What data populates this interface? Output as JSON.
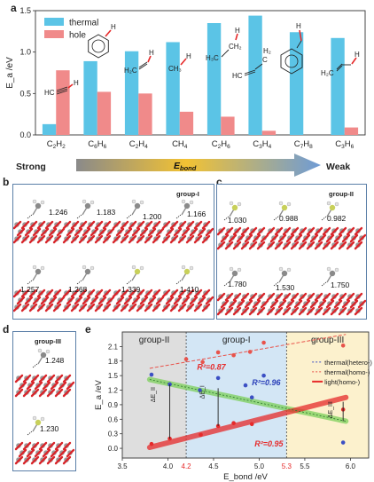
{
  "panels": {
    "a": "a",
    "b": "b",
    "c": "c",
    "d": "d",
    "e": "e"
  },
  "chart_data": [
    {
      "type": "bar",
      "panel": "a",
      "ylabel": "E_a /eV",
      "ylim": [
        0,
        1.5
      ],
      "yticks": [
        "0.0",
        "0.5",
        "1.0",
        "1.5"
      ],
      "categories": [
        "C2H2",
        "C6H6",
        "C2H4",
        "CH4",
        "C2H6",
        "C3H4",
        "C7H8",
        "C3H6"
      ],
      "category_labels": [
        {
          "main": "C",
          "sub1": "2",
          "mid": "H",
          "sub2": "2"
        },
        {
          "main": "C",
          "sub1": "6",
          "mid": "H",
          "sub2": "6"
        },
        {
          "main": "C",
          "sub1": "2",
          "mid": "H",
          "sub2": "4"
        },
        {
          "main": "CH",
          "sub1": "4",
          "mid": "",
          "sub2": ""
        },
        {
          "main": "C",
          "sub1": "2",
          "mid": "H",
          "sub2": "6"
        },
        {
          "main": "C",
          "sub1": "3",
          "mid": "H",
          "sub2": "4"
        },
        {
          "main": "C",
          "sub1": "7",
          "mid": "H",
          "sub2": "8"
        },
        {
          "main": "C",
          "sub1": "3",
          "mid": "H",
          "sub2": "6"
        }
      ],
      "legend_position": "top-left",
      "series": [
        {
          "name": "thermal",
          "color": "#5bc4e6",
          "values": [
            0.13,
            0.89,
            1.01,
            1.12,
            1.35,
            1.44,
            1.24,
            1.17
          ]
        },
        {
          "name": "hole",
          "color": "#f08a8a",
          "values": [
            0.78,
            0.52,
            0.5,
            0.28,
            0.22,
            0.05,
            0.0,
            0.09
          ]
        }
      ],
      "arrow": {
        "left": "Strong",
        "center": "E",
        "center_sub": "bond",
        "right": "Weak"
      }
    },
    {
      "type": "scatter",
      "panel": "e",
      "xlabel": "E_bond /eV",
      "ylabel": "E_a /eV",
      "xlim": [
        3.5,
        6.2
      ],
      "ylim": [
        -0.2,
        2.4
      ],
      "xticks": [
        "3.5",
        "4.0",
        "4.5",
        "5.0",
        "5.5",
        "6.0"
      ],
      "yticks": [
        "0.0",
        "0.3",
        "0.6",
        "0.9",
        "1.2",
        "1.5",
        "1.8",
        "2.1"
      ],
      "region_bounds": [
        "4.2",
        "5.3"
      ],
      "regions": [
        {
          "name": "group-II",
          "color": "#dedede"
        },
        {
          "name": "group-I",
          "color": "#d3e6f5"
        },
        {
          "name": "group-III",
          "color": "#fcf1cd"
        }
      ],
      "series": [
        {
          "name": "thermal(hetero-)",
          "color": "#3b4fc4",
          "points": [
            [
              3.82,
              1.52
            ],
            [
              4.02,
              1.32
            ],
            [
              4.35,
              1.2
            ],
            [
              4.55,
              1.45
            ],
            [
              4.85,
              1.3
            ],
            [
              4.92,
              1.05
            ],
            [
              5.05,
              1.5
            ],
            [
              5.92,
              0.12
            ]
          ]
        },
        {
          "name": "thermal(homo-)",
          "color": "#e8534b",
          "points": [
            [
              4.2,
              1.84
            ],
            [
              4.38,
              1.78
            ],
            [
              4.55,
              1.98
            ],
            [
              4.72,
              1.92
            ],
            [
              4.9,
              1.99
            ],
            [
              5.05,
              2.18
            ],
            [
              5.92,
              2.12
            ]
          ]
        },
        {
          "name": "light(homo-)",
          "color": "#e62a2a",
          "points": [
            [
              3.82,
              0.09
            ],
            [
              4.02,
              0.2
            ],
            [
              4.36,
              0.28
            ],
            [
              4.55,
              0.46
            ],
            [
              4.72,
              0.52
            ],
            [
              4.92,
              0.5
            ],
            [
              5.92,
              0.8
            ]
          ]
        }
      ],
      "fits": [
        {
          "color": "#7ccf5a",
          "x": [
            3.8,
            5.95
          ],
          "y": [
            1.42,
            0.56
          ]
        },
        {
          "color": "#e8534b",
          "x": [
            3.8,
            5.95
          ],
          "y": [
            1.65,
            2.35
          ],
          "dashed": true
        },
        {
          "color": "#e62a2a",
          "x": [
            3.8,
            5.95
          ],
          "y": [
            0.02,
            1.05
          ]
        }
      ],
      "annotations": [
        {
          "text": "R²=0.87",
          "color": "#e62a2a"
        },
        {
          "text": "R²=0.96",
          "color": "#2a3fb8"
        },
        {
          "text": "R²=0.95",
          "color": "#e62a2a"
        },
        {
          "text": "ΔE_II"
        },
        {
          "text": "ΔE_I"
        },
        {
          "text": "ΔE_III"
        }
      ]
    }
  ],
  "molecules": [
    "HC≡CH",
    "C6H5",
    "H2C=CH",
    "CH3",
    "H3C–CH2",
    "HC≡C–CH2",
    "C6H5–CH2",
    "H2C=CH–CH2"
  ],
  "panel_b": {
    "group": "group-I",
    "values": [
      "1.246",
      "1.183",
      "1.200",
      "1.166",
      "1.257",
      "1.268",
      "1.339",
      "1.410"
    ]
  },
  "panel_c": {
    "group": "group-II",
    "values": [
      "1.030",
      "0.988",
      "0.982",
      "1.780",
      "1.530",
      "1.750"
    ]
  },
  "panel_d": {
    "group": "group-III",
    "values": [
      "1.248",
      "1.230"
    ]
  }
}
